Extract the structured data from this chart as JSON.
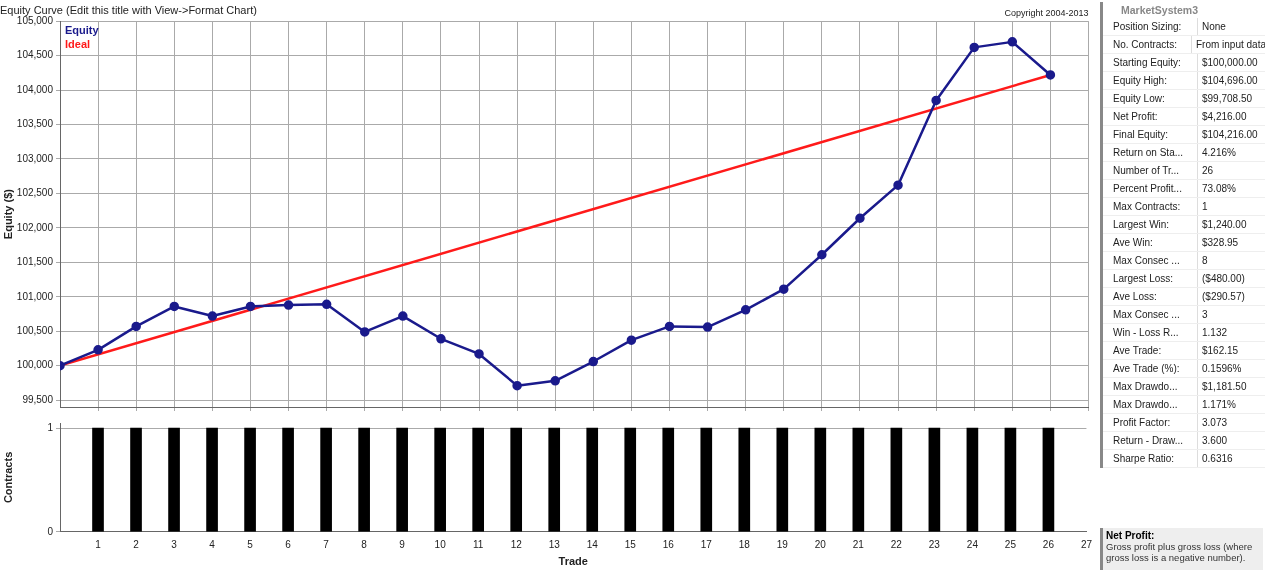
{
  "chart_data": [
    {
      "type": "line",
      "title": "Equity Curve (Edit this title with View->Format Chart)",
      "ylabel": "Equity ($)",
      "annotations": [
        "Copyright 2004-2013"
      ],
      "x": [
        0,
        1,
        2,
        3,
        4,
        5,
        6,
        7,
        8,
        9,
        10,
        11,
        12,
        13,
        14,
        15,
        16,
        17,
        18,
        19,
        20,
        21,
        22,
        23,
        24,
        25,
        26
      ],
      "series": [
        {
          "name": "Equity",
          "color": "#1a1a8c",
          "values": [
            100000,
            100230,
            100570,
            100860,
            100720,
            100860,
            100880,
            100890,
            100490,
            100720,
            100390,
            100170,
            99710,
            99780,
            100060,
            100370,
            100570,
            100560,
            100810,
            101110,
            101610,
            102140,
            102620,
            103850,
            104620,
            104700,
            104220
          ]
        },
        {
          "name": "Ideal",
          "color": "#ff1a1a",
          "marker": "none",
          "x": [
            0,
            26
          ],
          "values": [
            100000,
            104220
          ]
        }
      ],
      "xlim": [
        0,
        27
      ],
      "xticks": [
        1,
        2,
        3,
        4,
        5,
        6,
        7,
        8,
        9,
        10,
        11,
        12,
        13,
        14,
        15,
        16,
        17,
        18,
        19,
        20,
        21,
        22,
        23,
        24,
        25,
        26,
        27
      ],
      "ylim": [
        99400,
        105000
      ],
      "yticks": [
        {
          "value": 99500,
          "label": "99,500"
        },
        {
          "value": 100000,
          "label": "100,000"
        },
        {
          "value": 100500,
          "label": "100,500"
        },
        {
          "value": 101000,
          "label": "101,000"
        },
        {
          "value": 101500,
          "label": "101,500"
        },
        {
          "value": 102000,
          "label": "102,000"
        },
        {
          "value": 102500,
          "label": "102,500"
        },
        {
          "value": 103000,
          "label": "103,000"
        },
        {
          "value": 103500,
          "label": "103,500"
        },
        {
          "value": 104000,
          "label": "104,000"
        },
        {
          "value": 104500,
          "label": "104,500"
        },
        {
          "value": 105000,
          "label": "105,000"
        }
      ],
      "tick_labels": "y",
      "grid": true,
      "legend": "top left",
      "marker": "circle",
      "line_style": "solid"
    },
    {
      "type": "bar",
      "xlabel": "Trade",
      "ylabel": "Contracts",
      "x": [
        1,
        2,
        3,
        4,
        5,
        6,
        7,
        8,
        9,
        10,
        11,
        12,
        13,
        14,
        15,
        16,
        17,
        18,
        19,
        20,
        21,
        22,
        23,
        24,
        25,
        26
      ],
      "values": [
        1,
        1,
        1,
        1,
        1,
        1,
        1,
        1,
        1,
        1,
        1,
        1,
        1,
        1,
        1,
        1,
        1,
        1,
        1,
        1,
        1,
        1,
        1,
        1,
        1,
        1
      ],
      "color": "#000000",
      "xlim": [
        0,
        27
      ],
      "xticks": [
        1,
        2,
        3,
        4,
        5,
        6,
        7,
        8,
        9,
        10,
        11,
        12,
        13,
        14,
        15,
        16,
        17,
        18,
        19,
        20,
        21,
        22,
        23,
        24,
        25,
        26,
        27
      ],
      "ylim": [
        0,
        1.05
      ],
      "yticks": [
        0,
        1
      ],
      "grid": "y",
      "legend": false
    },
    {
      "type": "other",
      "title": "MarketSystem3",
      "annotations": [
        "Position Sizing:",
        "None",
        "No. Contracts:",
        "From input data",
        "Starting Equity:",
        "$100,000.00",
        "Equity High:",
        "$104,696.00",
        "Equity Low:",
        "$99,708.50",
        "Net Profit:",
        "$4,216.00",
        "Final Equity:",
        "$104,216.00",
        "Return on Sta...",
        "4.216%",
        "Number of Tr...",
        "26",
        "Percent Profit...",
        "73.08%",
        "Max Contracts:",
        "1",
        "Largest Win:",
        "$1,240.00",
        "Ave Win:",
        "$328.95",
        "Max Consec ...",
        "8",
        "Largest Loss:",
        "($480.00)",
        "Ave Loss:",
        "($290.57)",
        "Max Consec ...",
        "3",
        "Win - Loss R...",
        "1.132",
        "Ave Trade:",
        "$162.15",
        "Ave Trade (%):",
        "0.1596%",
        "Max Drawdo...",
        "$1,181.50",
        "Max Drawdo...",
        "1.171%",
        "Profit Factor:",
        "3.073",
        "Return - Draw...",
        "3.600",
        "Sharpe Ratio:",
        "0.6316"
      ]
    },
    {
      "type": "other",
      "title": "Net Profit:",
      "annotations": [
        "Gross profit plus gross loss (where gross loss is a negative number)."
      ]
    }
  ]
}
